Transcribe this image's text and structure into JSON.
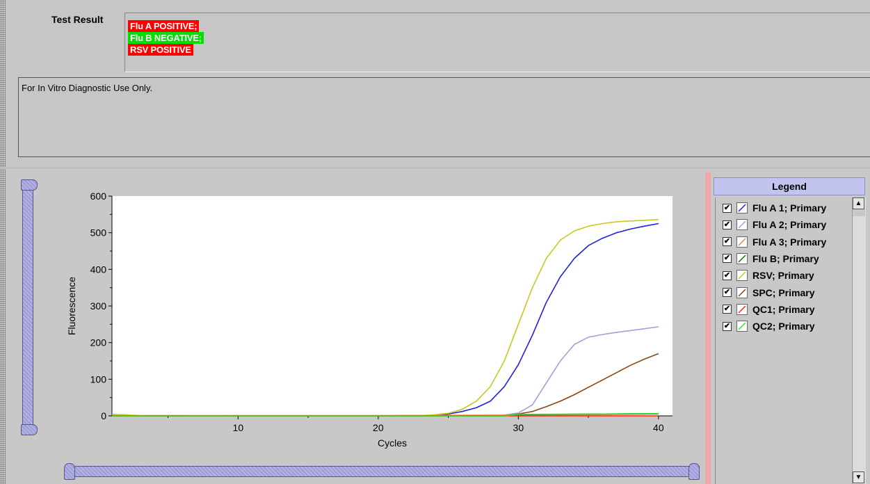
{
  "test_result": {
    "label": "Test Result",
    "lines": [
      {
        "text": "Flu A POSITIVE;",
        "color": "#ff0000"
      },
      {
        "text": "Flu B NEGATIVE;",
        "color": "#00e000"
      },
      {
        "text": "RSV POSITIVE",
        "color": "#ff0000"
      }
    ]
  },
  "notes": "For In Vitro Diagnostic Use Only.",
  "legend": {
    "title": "Legend",
    "check_mark": "✔",
    "items": [
      {
        "label": "Flu A 1; Primary",
        "color": "#1f1fe0",
        "checked": true
      },
      {
        "label": "Flu A 2; Primary",
        "color": "#a0a0d8",
        "checked": true
      },
      {
        "label": "Flu A 3; Primary",
        "color": "#f08040",
        "checked": true
      },
      {
        "label": "Flu B; Primary",
        "color": "#107010",
        "checked": true
      },
      {
        "label": "RSV; Primary",
        "color": "#c8c820",
        "checked": true
      },
      {
        "label": "SPC; Primary",
        "color": "#8b4513",
        "checked": true
      },
      {
        "label": "QC1; Primary",
        "color": "#ff2020",
        "checked": true
      },
      {
        "label": "QC2; Primary",
        "color": "#30e030",
        "checked": true
      }
    ],
    "scroll_up_icon": "▲",
    "scroll_down_icon": "▼"
  },
  "chart_data": {
    "type": "line",
    "xlabel": "Cycles",
    "ylabel": "Fluorescence",
    "xlim": [
      1,
      41
    ],
    "ylim": [
      0,
      600
    ],
    "xticks": [
      10,
      20,
      30,
      40
    ],
    "yticks": [
      0,
      100,
      200,
      300,
      400,
      500,
      600
    ],
    "grid": false,
    "series": [
      {
        "name": "Flu A 1; Primary",
        "color": "#1f1fe0",
        "x": [
          1,
          5,
          10,
          15,
          20,
          24,
          25,
          26,
          27,
          28,
          29,
          30,
          31,
          32,
          33,
          34,
          35,
          36,
          37,
          38,
          39,
          40
        ],
        "y": [
          1,
          0,
          0,
          0,
          0,
          1,
          5,
          12,
          22,
          40,
          80,
          140,
          220,
          310,
          380,
          430,
          465,
          485,
          500,
          510,
          518,
          525
        ]
      },
      {
        "name": "Flu A 2; Primary",
        "color": "#a0a0d8",
        "x": [
          1,
          10,
          20,
          28,
          29,
          30,
          31,
          32,
          33,
          34,
          35,
          36,
          37,
          38,
          39,
          40
        ],
        "y": [
          0,
          0,
          0,
          0,
          2,
          8,
          30,
          90,
          150,
          195,
          215,
          222,
          228,
          233,
          238,
          243
        ]
      },
      {
        "name": "Flu A 3; Primary",
        "color": "#f08040",
        "x": [
          1,
          10,
          20,
          30,
          35,
          40
        ],
        "y": [
          1,
          1,
          1,
          2,
          3,
          5
        ]
      },
      {
        "name": "Flu B; Primary",
        "color": "#107010",
        "x": [
          1,
          10,
          20,
          29,
          30,
          35,
          40
        ],
        "y": [
          0,
          0,
          0,
          0,
          3,
          5,
          6
        ]
      },
      {
        "name": "RSV; Primary",
        "color": "#c8c820",
        "x": [
          1,
          2,
          3,
          10,
          20,
          23,
          24,
          25,
          26,
          27,
          28,
          29,
          30,
          31,
          32,
          33,
          34,
          35,
          36,
          37,
          38,
          39,
          40
        ],
        "y": [
          4,
          3,
          1,
          0,
          0,
          1,
          3,
          7,
          18,
          40,
          80,
          150,
          250,
          350,
          430,
          480,
          505,
          518,
          525,
          530,
          532,
          534,
          536
        ]
      },
      {
        "name": "SPC; Primary",
        "color": "#8b4513",
        "x": [
          1,
          10,
          20,
          29,
          30,
          31,
          32,
          33,
          34,
          35,
          36,
          37,
          38,
          39,
          40
        ],
        "y": [
          0,
          0,
          0,
          0,
          5,
          12,
          25,
          40,
          58,
          78,
          98,
          118,
          138,
          155,
          170
        ]
      },
      {
        "name": "QC1; Primary",
        "color": "#ff2020",
        "x": [
          1,
          10,
          20,
          40
        ],
        "y": [
          0,
          0,
          0,
          0
        ]
      },
      {
        "name": "QC2; Primary",
        "color": "#30e030",
        "x": [
          1,
          10,
          20,
          29,
          30,
          35,
          40
        ],
        "y": [
          0,
          0,
          0,
          0,
          4,
          5,
          6
        ]
      }
    ]
  }
}
